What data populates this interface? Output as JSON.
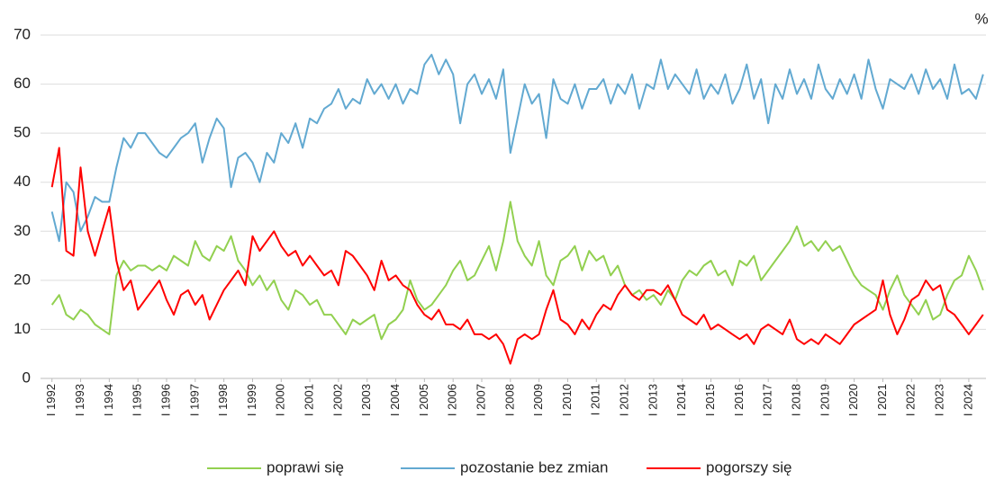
{
  "chart_data": {
    "type": "line",
    "unit": "%",
    "x": [
      1992,
      1992.25,
      1992.5,
      1992.75,
      1993,
      1993.25,
      1993.5,
      1993.75,
      1994,
      1994.25,
      1994.5,
      1994.75,
      1995,
      1995.25,
      1995.5,
      1995.75,
      1996,
      1996.25,
      1996.5,
      1996.75,
      1997,
      1997.25,
      1997.5,
      1997.75,
      1998,
      1998.25,
      1998.5,
      1998.75,
      1999,
      1999.25,
      1999.5,
      1999.75,
      2000,
      2000.25,
      2000.5,
      2000.75,
      2001,
      2001.25,
      2001.5,
      2001.75,
      2002,
      2002.25,
      2002.5,
      2002.75,
      2003,
      2003.25,
      2003.5,
      2003.75,
      2004,
      2004.25,
      2004.5,
      2004.75,
      2005,
      2005.25,
      2005.5,
      2005.75,
      2006,
      2006.25,
      2006.5,
      2006.75,
      2007,
      2007.25,
      2007.5,
      2007.75,
      2008,
      2008.25,
      2008.5,
      2008.75,
      2009,
      2009.25,
      2009.5,
      2009.75,
      2010,
      2010.25,
      2010.5,
      2010.75,
      2011,
      2011.25,
      2011.5,
      2011.75,
      2012,
      2012.25,
      2012.5,
      2012.75,
      2013,
      2013.25,
      2013.5,
      2013.75,
      2014,
      2014.25,
      2014.5,
      2014.75,
      2015,
      2015.25,
      2015.5,
      2015.75,
      2016,
      2016.25,
      2016.5,
      2016.75,
      2017,
      2017.25,
      2017.5,
      2017.75,
      2018,
      2018.25,
      2018.5,
      2018.75,
      2019,
      2019.25,
      2019.5,
      2019.75,
      2020,
      2020.25,
      2020.5,
      2020.75,
      2021,
      2021.25,
      2021.5,
      2021.75,
      2022,
      2022.25,
      2022.5,
      2022.75,
      2023,
      2023.25,
      2023.5,
      2023.75,
      2024,
      2024.25,
      2024.5
    ],
    "series": [
      {
        "name": "poprawi się",
        "color": "#92d050",
        "values": [
          15,
          17,
          13,
          12,
          14,
          13,
          11,
          10,
          9,
          21,
          24,
          22,
          23,
          23,
          22,
          23,
          22,
          25,
          24,
          23,
          28,
          25,
          24,
          27,
          26,
          29,
          24,
          22,
          19,
          21,
          18,
          20,
          16,
          14,
          18,
          17,
          15,
          16,
          13,
          13,
          11,
          9,
          12,
          11,
          12,
          13,
          8,
          11,
          12,
          14,
          20,
          16,
          14,
          15,
          17,
          19,
          22,
          24,
          20,
          21,
          24,
          27,
          22,
          28,
          36,
          28,
          25,
          23,
          28,
          21,
          19,
          24,
          25,
          27,
          22,
          26,
          24,
          25,
          21,
          23,
          19,
          17,
          18,
          16,
          17,
          15,
          18,
          16,
          20,
          22,
          21,
          23,
          24,
          21,
          22,
          19,
          24,
          23,
          25,
          20,
          22,
          24,
          26,
          28,
          31,
          27,
          28,
          26,
          28,
          26,
          27,
          24,
          21,
          19,
          18,
          17,
          14,
          18,
          21,
          17,
          15,
          13,
          16,
          12,
          13,
          17,
          20,
          21,
          25,
          22,
          18
        ]
      },
      {
        "name": "pozostanie bez zmian",
        "color": "#62a9d1",
        "values": [
          34,
          28,
          40,
          38,
          30,
          33,
          37,
          36,
          36,
          43,
          49,
          47,
          50,
          50,
          48,
          46,
          45,
          47,
          49,
          50,
          52,
          44,
          49,
          53,
          51,
          39,
          45,
          46,
          44,
          40,
          46,
          44,
          50,
          48,
          52,
          47,
          53,
          52,
          55,
          56,
          59,
          55,
          57,
          56,
          61,
          58,
          60,
          57,
          60,
          56,
          59,
          58,
          64,
          66,
          62,
          65,
          62,
          52,
          60,
          62,
          58,
          61,
          57,
          63,
          46,
          53,
          60,
          56,
          58,
          49,
          61,
          57,
          56,
          60,
          55,
          59,
          59,
          61,
          56,
          60,
          58,
          62,
          55,
          60,
          59,
          65,
          59,
          62,
          60,
          58,
          63,
          57,
          60,
          58,
          62,
          56,
          59,
          64,
          57,
          61,
          52,
          60,
          57,
          63,
          58,
          61,
          57,
          64,
          59,
          57,
          61,
          58,
          62,
          57,
          65,
          59,
          55,
          61,
          60,
          59,
          62,
          58,
          63,
          59,
          61,
          57,
          64,
          58,
          59,
          57,
          62
        ]
      },
      {
        "name": "pogorszy się",
        "color": "#ff0000",
        "values": [
          39,
          47,
          26,
          25,
          43,
          30,
          25,
          30,
          35,
          24,
          18,
          20,
          14,
          16,
          18,
          20,
          16,
          13,
          17,
          18,
          15,
          17,
          12,
          15,
          18,
          20,
          22,
          19,
          29,
          26,
          28,
          30,
          27,
          25,
          26,
          23,
          25,
          23,
          21,
          22,
          19,
          26,
          25,
          23,
          21,
          18,
          24,
          20,
          21,
          19,
          18,
          15,
          13,
          12,
          14,
          11,
          11,
          10,
          12,
          9,
          9,
          8,
          9,
          7,
          3,
          8,
          9,
          8,
          9,
          14,
          18,
          12,
          11,
          9,
          12,
          10,
          13,
          15,
          14,
          17,
          19,
          17,
          16,
          18,
          18,
          17,
          19,
          16,
          13,
          12,
          11,
          13,
          10,
          11,
          10,
          9,
          8,
          9,
          7,
          10,
          11,
          10,
          9,
          12,
          8,
          7,
          8,
          7,
          9,
          8,
          7,
          9,
          11,
          12,
          13,
          14,
          20,
          13,
          9,
          12,
          16,
          17,
          20,
          18,
          19,
          14,
          13,
          11,
          9,
          11,
          13
        ]
      }
    ],
    "xlim": [
      1991.6,
      2024.6
    ],
    "xticks": [
      {
        "value": 1992,
        "label": "I 1992"
      },
      {
        "value": 1993,
        "label": "I 1993"
      },
      {
        "value": 1994,
        "label": "I 1994"
      },
      {
        "value": 1995,
        "label": "I 1995"
      },
      {
        "value": 1996,
        "label": "I 1996"
      },
      {
        "value": 1997,
        "label": "I 1997"
      },
      {
        "value": 1998,
        "label": "I 1998"
      },
      {
        "value": 1999,
        "label": "I 1999"
      },
      {
        "value": 2000,
        "label": "I 2000"
      },
      {
        "value": 2001,
        "label": "I 2001"
      },
      {
        "value": 2002,
        "label": "I 2002"
      },
      {
        "value": 2003,
        "label": "I 2003"
      },
      {
        "value": 2004,
        "label": "I 2004"
      },
      {
        "value": 2005,
        "label": "I 2005"
      },
      {
        "value": 2006,
        "label": "I 2006"
      },
      {
        "value": 2007,
        "label": "I 2007"
      },
      {
        "value": 2008,
        "label": "I 2008"
      },
      {
        "value": 2009,
        "label": "I 2009"
      },
      {
        "value": 2010,
        "label": "I 2010"
      },
      {
        "value": 2011,
        "label": "I 2011"
      },
      {
        "value": 2012,
        "label": "I 2012"
      },
      {
        "value": 2013,
        "label": "I 2013"
      },
      {
        "value": 2014,
        "label": "I 2014"
      },
      {
        "value": 2015,
        "label": "I 2015"
      },
      {
        "value": 2016,
        "label": "I 2016"
      },
      {
        "value": 2017,
        "label": "I 2017"
      },
      {
        "value": 2018,
        "label": "I 2018"
      },
      {
        "value": 2019,
        "label": "I 2019"
      },
      {
        "value": 2020,
        "label": "I 2020"
      },
      {
        "value": 2021,
        "label": "I 2021"
      },
      {
        "value": 2022,
        "label": "I 2022"
      },
      {
        "value": 2023,
        "label": "I 2023"
      },
      {
        "value": 2024,
        "label": "I 2024"
      }
    ],
    "ylim": [
      0,
      70
    ],
    "yticks": [
      0,
      10,
      20,
      30,
      40,
      50,
      60,
      70
    ],
    "grid": true,
    "legend": "bottom"
  }
}
